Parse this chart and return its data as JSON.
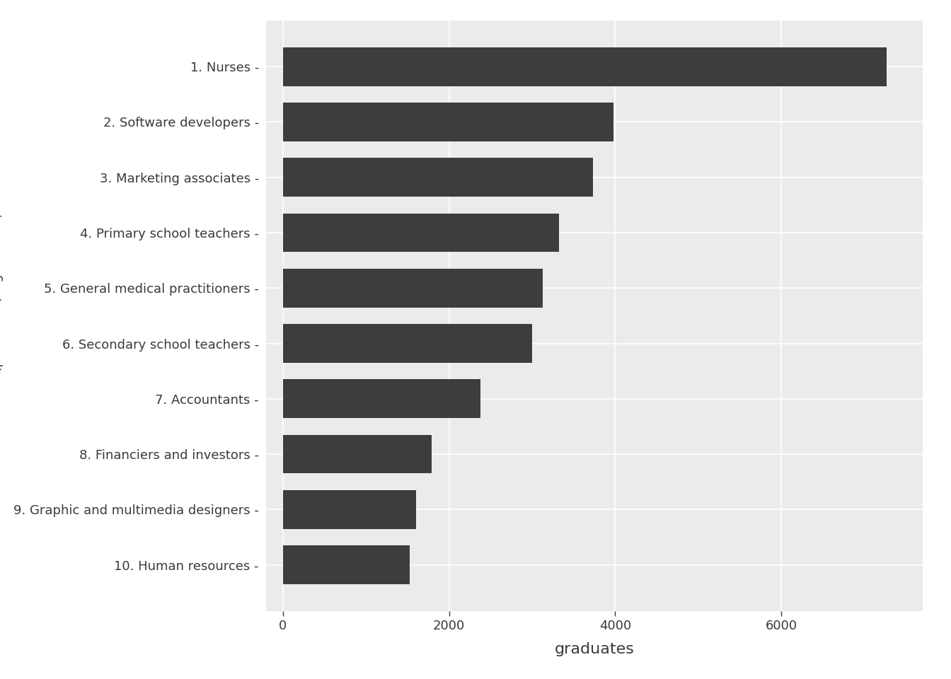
{
  "categories": [
    "10. Human resources",
    "9. Graphic and multimedia designers",
    "8. Financiers and investors",
    "7. Accountants",
    "6. Secondary school teachers",
    "5. General medical practitioners",
    "4. Primary school teachers",
    "3. Marketing associates",
    "2. Software developers",
    "1. Nurses"
  ],
  "values": [
    1530,
    1600,
    1790,
    2380,
    3000,
    3130,
    3320,
    3730,
    3980,
    7270
  ],
  "bar_color": "#3d3d3d",
  "figure_bg": "#ffffff",
  "panel_color": "#ebebeb",
  "xlabel": "graduates",
  "xlim": [
    -200,
    7700
  ],
  "xticks": [
    0,
    2000,
    4000,
    6000
  ],
  "xlabel_fontsize": 16,
  "ylabel_fontsize": 13,
  "ytick_fontsize": 13,
  "xtick_fontsize": 13,
  "bar_height": 0.7,
  "grid_color": "#ffffff",
  "grid_linewidth": 1.2,
  "label_color": "#3a3a3a"
}
